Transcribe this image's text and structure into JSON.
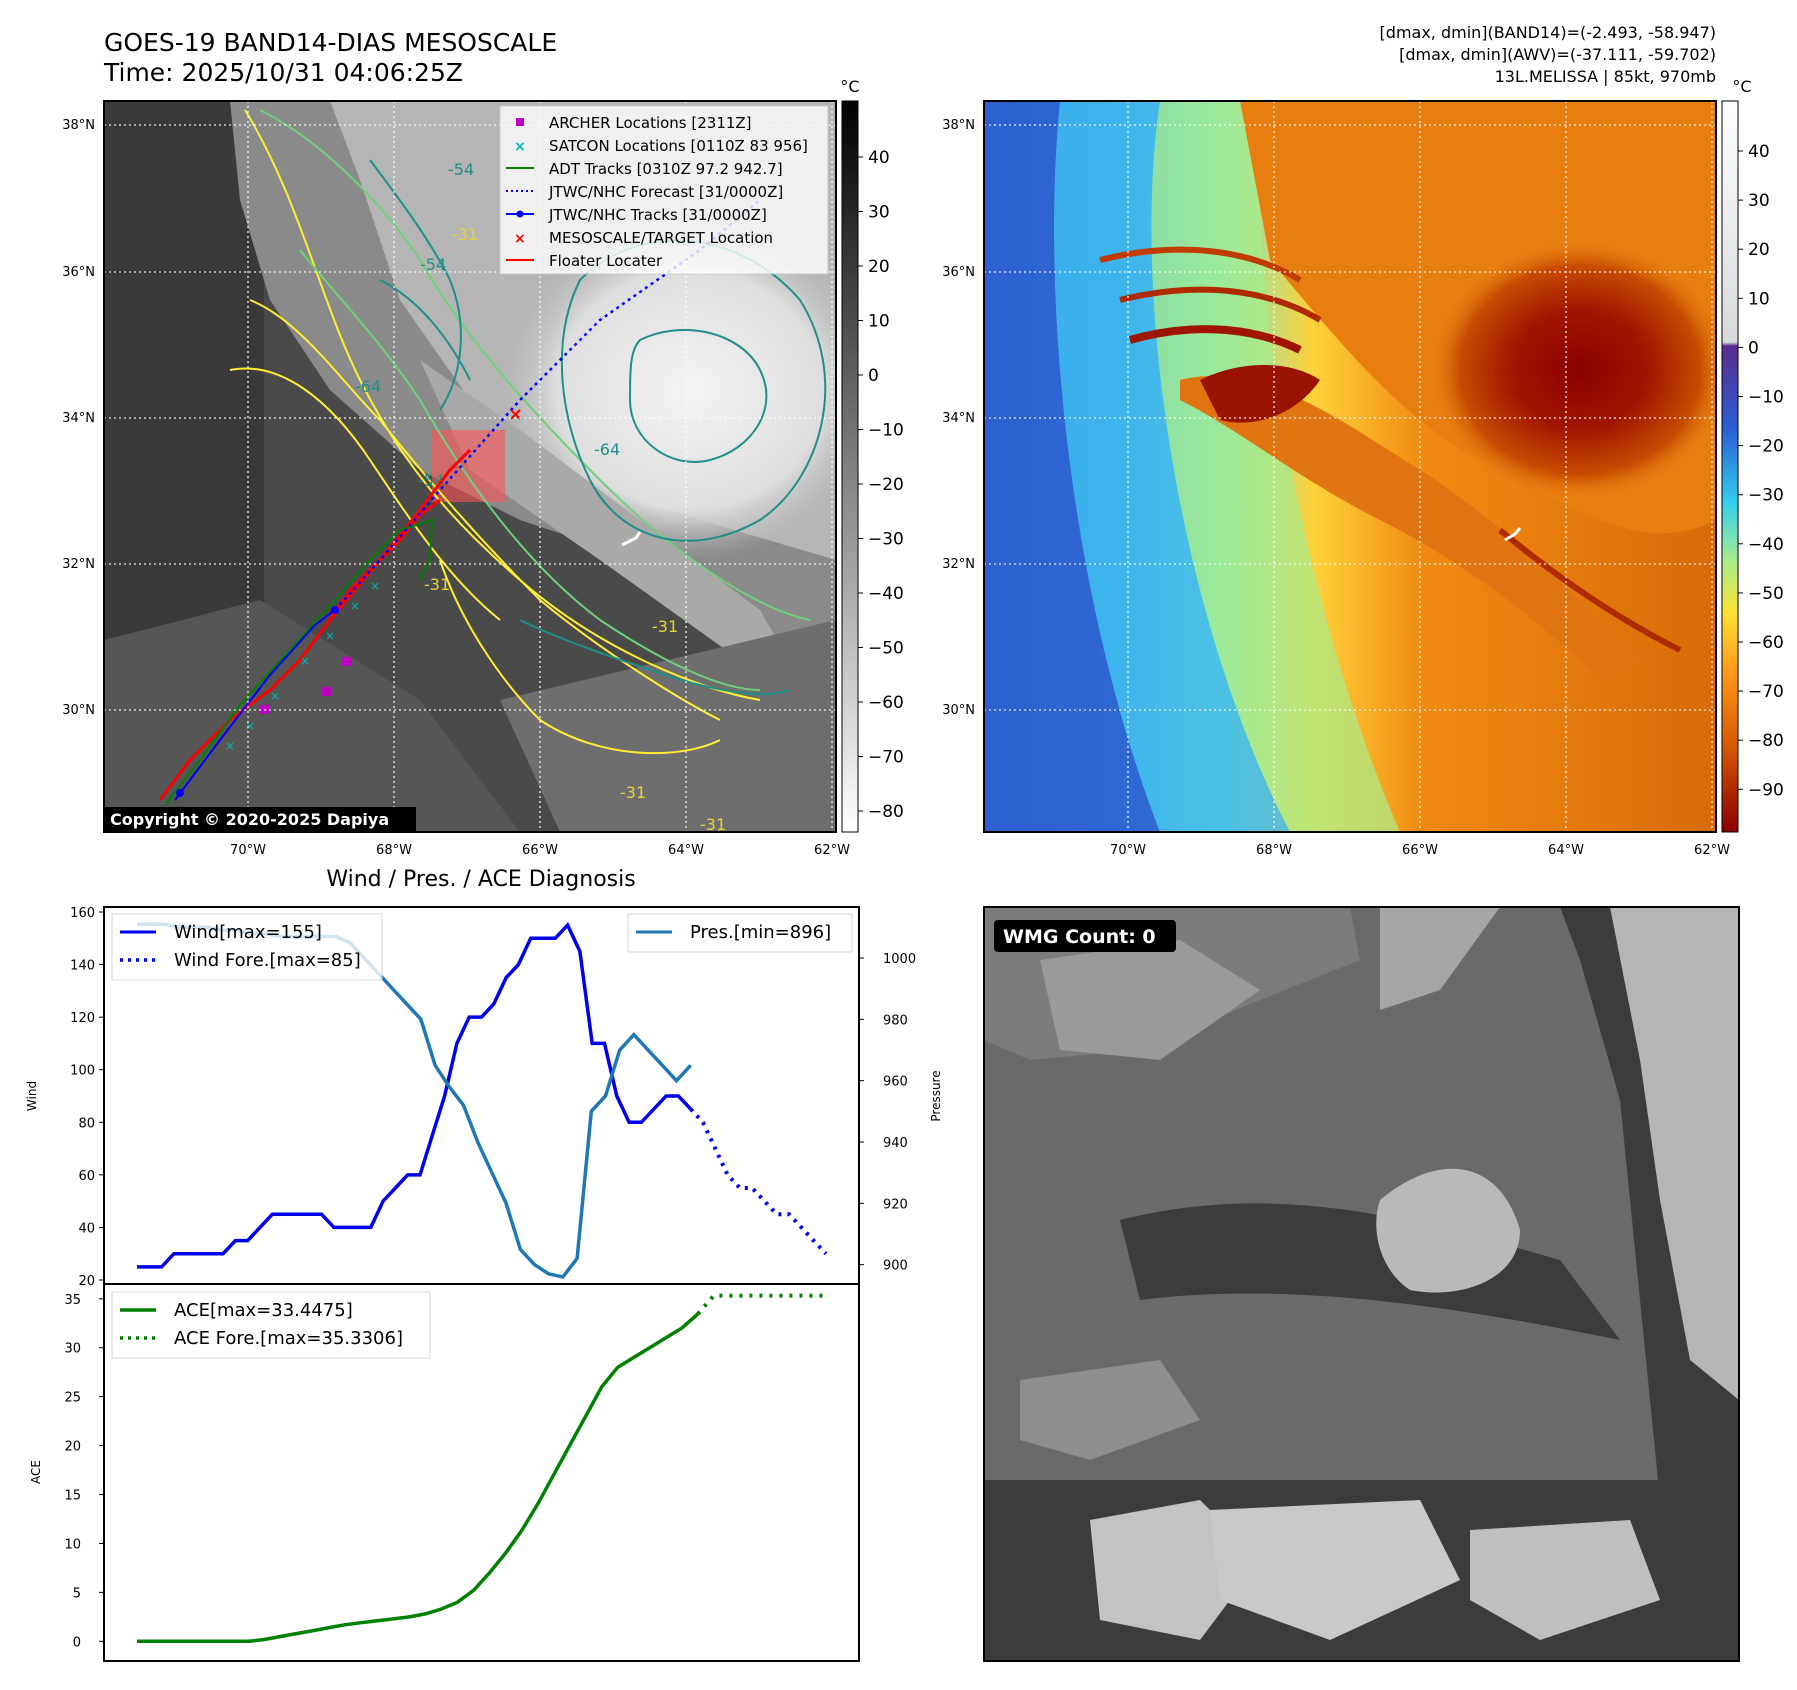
{
  "header": {
    "title_line1": "GOES-19 BAND14-DIAS MESOSCALE",
    "title_line2": "Time: 2025/10/31 04:06:25Z",
    "stats_line1": "[dmax, dmin](BAND14)=(-2.493, -58.947)",
    "stats_line2": "[dmax, dmin](AWV)=(-37.111, -59.702)",
    "stats_line3": "13L.MELISSA | 85kt, 970mb"
  },
  "copyright": "Copyright © 2020-2025 Dapiya",
  "map": {
    "lat_labels": [
      "38°N",
      "36°N",
      "34°N",
      "32°N",
      "30°N"
    ],
    "lon_labels": [
      "70°W",
      "68°W",
      "66°W",
      "64°W",
      "62°W"
    ],
    "contour_labels": [
      "-54",
      "-54",
      "-64",
      "-64",
      "-54",
      "-31",
      "-31",
      "-31",
      "-31",
      "-31"
    ],
    "legend": [
      {
        "label": "ARCHER Locations [2311Z]",
        "color": "#c000c0",
        "marker": "square"
      },
      {
        "label": "SATCON Locations [0110Z 83 956]",
        "color": "#00b3b3",
        "marker": "x"
      },
      {
        "label": "ADT Tracks [0310Z 97.2 942.7]",
        "color": "#008000",
        "marker": "line"
      },
      {
        "label": "JTWC/NHC Forecast [31/0000Z]",
        "color": "#0000ff",
        "marker": "dotted"
      },
      {
        "label": "JTWC/NHC Tracks [31/0000Z]",
        "color": "#0000ff",
        "marker": "line-dot"
      },
      {
        "label": "MESOSCALE/TARGET Location",
        "color": "#ff0000",
        "marker": "x"
      },
      {
        "label": "Floater Locater",
        "color": "#ff0000",
        "marker": "line"
      }
    ],
    "colors": {
      "archer": "#c000c0",
      "satcon": "#00b3b3",
      "adt": "#008000",
      "jtwc": "#0000ff",
      "floater": "#ff0000",
      "contour_yellow": "#ffee33",
      "contour_green": "#6fd07a",
      "contour_teal": "#1f8f88"
    }
  },
  "colorbar_gray": {
    "unit": "°C",
    "ticks": [
      "40",
      "30",
      "20",
      "10",
      "0",
      "−10",
      "−20",
      "−30",
      "−40",
      "−50",
      "−60",
      "−70",
      "−80"
    ]
  },
  "colorbar_color": {
    "unit": "°C",
    "ticks": [
      "40",
      "30",
      "20",
      "10",
      "0",
      "−10",
      "−20",
      "−30",
      "−40",
      "−50",
      "−60",
      "−70",
      "−80",
      "−90"
    ]
  },
  "wmg": {
    "label": "WMG Count: 0"
  },
  "chart_data": [
    {
      "type": "line",
      "title": "Wind / Pres. / ACE Diagnosis",
      "xlabel": "",
      "ylabel": "Wind",
      "ylabel_right": "Pressure",
      "ylim": [
        20,
        160
      ],
      "ylim_right": [
        895,
        1015
      ],
      "yticks": [
        "160",
        "140",
        "120",
        "100",
        "80",
        "60",
        "40",
        "20"
      ],
      "yticks_right": [
        "1000",
        "980",
        "960",
        "940",
        "920",
        "900"
      ],
      "legend_left": [
        "Wind[max=155]",
        "Wind Fore.[max=85]"
      ],
      "legend_right": [
        "Pres.[min=896]"
      ],
      "series": [
        {
          "name": "Wind[max=155]",
          "axis": "left",
          "style": "solid",
          "color": "#0000ee",
          "values": [
            25,
            25,
            25,
            30,
            30,
            30,
            30,
            30,
            35,
            35,
            40,
            45,
            45,
            45,
            45,
            45,
            40,
            40,
            40,
            40,
            50,
            55,
            60,
            60,
            75,
            90,
            110,
            120,
            120,
            125,
            135,
            140,
            150,
            150,
            150,
            155,
            145,
            110,
            110,
            90,
            80,
            80,
            85,
            90,
            90,
            85
          ]
        },
        {
          "name": "Wind Fore.[max=85]",
          "axis": "left",
          "style": "dotted",
          "color": "#0000ee",
          "values": [
            85,
            80,
            70,
            60,
            55,
            55,
            50,
            45,
            45,
            40,
            35,
            30
          ]
        },
        {
          "name": "Pres.[min=896]",
          "axis": "right",
          "style": "solid",
          "color": "#1f77b4",
          "values": [
            1011,
            1011,
            1011,
            1010,
            1010,
            1010,
            1009,
            1009,
            1008,
            1008,
            1007,
            1007,
            1007,
            1007,
            1007,
            1005,
            1000,
            995,
            990,
            985,
            980,
            965,
            958,
            952,
            940,
            930,
            920,
            905,
            900,
            897,
            896,
            902,
            950,
            955,
            970,
            975,
            970,
            965,
            960,
            965
          ]
        }
      ]
    },
    {
      "type": "line",
      "xlabel": "",
      "ylabel": "ACE",
      "ylim": [
        -1.5,
        36
      ],
      "yticks": [
        "35",
        "30",
        "25",
        "20",
        "15",
        "10",
        "5",
        "0"
      ],
      "legend": [
        "ACE[max=33.4475]",
        "ACE Fore.[max=35.3306]"
      ],
      "series": [
        {
          "name": "ACE[max=33.4475]",
          "style": "solid",
          "color": "#008000",
          "values": [
            0,
            0,
            0,
            0,
            0,
            0,
            0,
            0,
            0.2,
            0.5,
            0.8,
            1.1,
            1.4,
            1.7,
            1.9,
            2.1,
            2.3,
            2.5,
            2.8,
            3.3,
            4,
            5.2,
            7,
            9,
            11.3,
            14,
            17,
            20,
            23,
            26,
            28,
            29,
            30,
            31,
            32,
            33.4475
          ]
        },
        {
          "name": "ACE Fore.[max=35.3306]",
          "style": "dotted",
          "color": "#008000",
          "values": [
            33.4475,
            35.3306,
            35.3306,
            35.3306,
            35.3306,
            35.3306,
            35.3306,
            35.3306,
            35.3306
          ]
        }
      ]
    }
  ]
}
